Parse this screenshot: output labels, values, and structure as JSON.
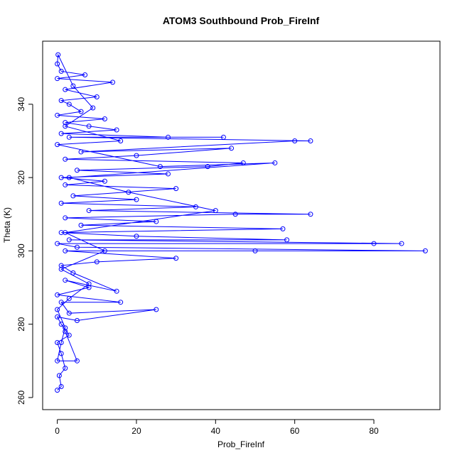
{
  "chart_data": {
    "type": "line",
    "title": "ATOM3 Southbound Prob_FireInf",
    "xlabel": "Prob_FireInf",
    "ylabel": "Theta (K)",
    "series": [
      {
        "color": "#0000ff",
        "x": [
          0,
          1,
          0.5,
          2,
          1,
          0,
          3,
          1,
          0,
          5,
          25,
          3,
          1,
          16,
          0,
          8,
          2,
          15,
          4,
          1,
          10,
          30,
          2,
          50,
          93,
          5,
          0,
          80,
          87,
          3,
          58,
          20,
          1,
          57,
          6,
          25,
          2,
          45,
          64,
          8,
          35,
          1,
          20,
          4,
          30,
          2,
          12,
          1,
          28,
          5,
          38,
          47,
          2,
          20,
          44,
          6,
          60,
          64,
          3,
          42,
          28,
          1,
          15,
          8,
          2,
          12,
          0,
          6,
          3,
          1,
          10,
          2,
          14,
          0,
          7,
          1,
          0,
          0.2,
          4,
          9,
          2,
          16,
          0,
          26,
          55,
          3,
          18,
          40,
          2,
          12,
          1,
          8,
          3,
          0,
          2,
          1,
          0,
          5,
          2
        ],
        "values": [
          262,
          263,
          266,
          268,
          272,
          275,
          277,
          280,
          282,
          281,
          284,
          283,
          286,
          286,
          288,
          290,
          292,
          289,
          294,
          296,
          297,
          298,
          300,
          300,
          300,
          301,
          302,
          302,
          302,
          303,
          303,
          304,
          305,
          306,
          307,
          308,
          309,
          310,
          310,
          311,
          312,
          313,
          314,
          315,
          317,
          318,
          319,
          320,
          321,
          322,
          323,
          324,
          325,
          326,
          328,
          327,
          330,
          330,
          331,
          331,
          331,
          332,
          333,
          334,
          335,
          336,
          337,
          338,
          340,
          341,
          342,
          344,
          346,
          347,
          348,
          349,
          351,
          353.5,
          345,
          339,
          334,
          330,
          329,
          323,
          324,
          320,
          316,
          311,
          305,
          300,
          295,
          291,
          287,
          284,
          279,
          275,
          270,
          270,
          278
        ]
      }
    ],
    "xlim": [
      -3.7,
      96.7
    ],
    "ylim": [
      256.7,
      357.2
    ],
    "xticks": [
      0,
      20,
      40,
      60,
      80
    ],
    "yticks": [
      260,
      280,
      300,
      320,
      340
    ]
  }
}
